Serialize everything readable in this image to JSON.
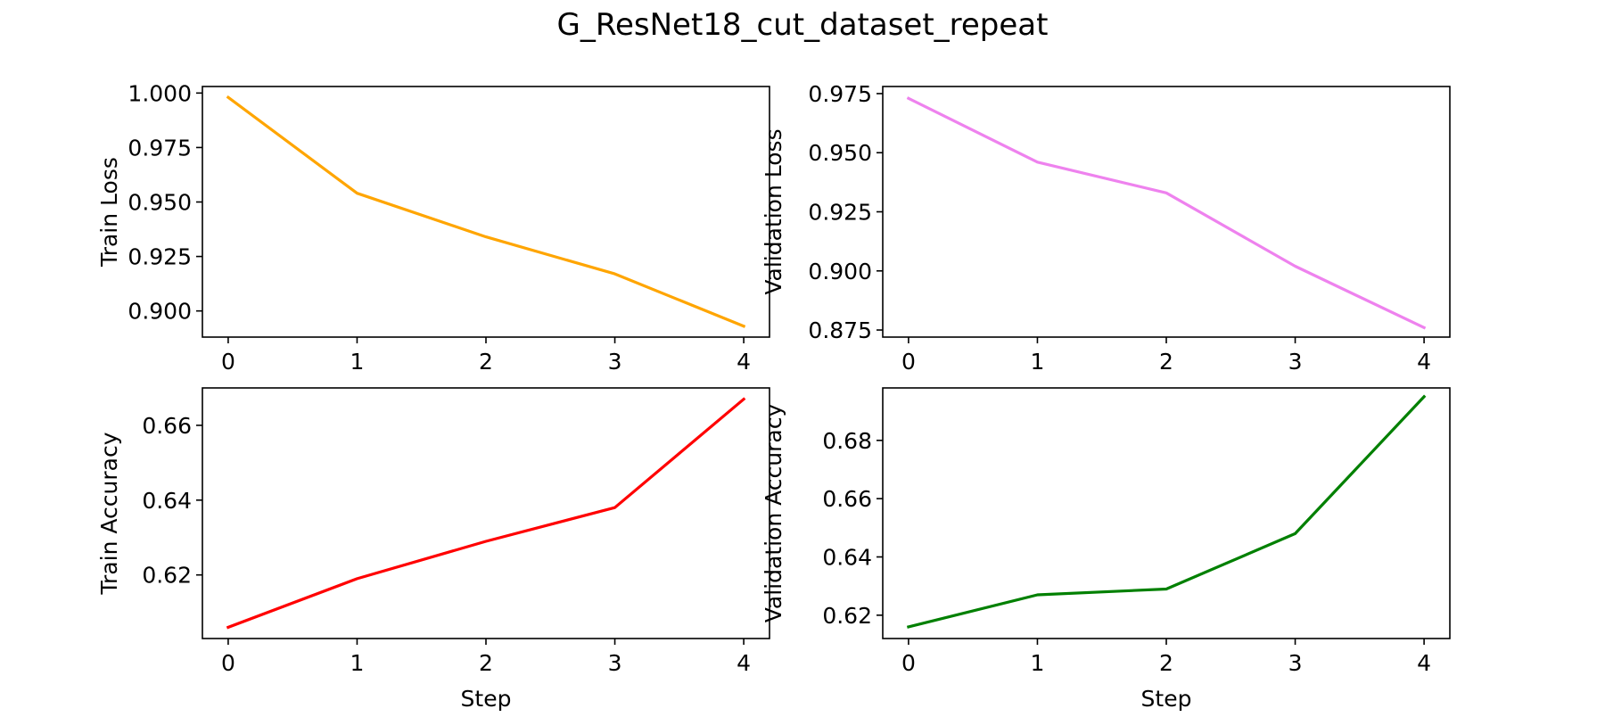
{
  "figure": {
    "title": "G_ResNet18_cut_dataset_repeat"
  },
  "chart_data": [
    {
      "type": "line",
      "id": "train-loss",
      "title": "",
      "xlabel": "",
      "ylabel": "Train Loss",
      "x": [
        0,
        1,
        2,
        3,
        4
      ],
      "series": [
        {
          "values": [
            0.998,
            0.954,
            0.934,
            0.917,
            0.893
          ],
          "color": "#ffa500"
        }
      ],
      "xlim": [
        -0.2,
        4.2
      ],
      "ylim": [
        0.888,
        1.003
      ],
      "xticks": [
        0,
        1,
        2,
        3,
        4
      ],
      "yticks": [
        0.9,
        0.925,
        0.95,
        0.975,
        1.0
      ],
      "ytick_labels": [
        "0.900",
        "0.925",
        "0.950",
        "0.975",
        "1.000"
      ],
      "grid": false
    },
    {
      "type": "line",
      "id": "validation-loss",
      "title": "",
      "xlabel": "",
      "ylabel": "Validation Loss",
      "x": [
        0,
        1,
        2,
        3,
        4
      ],
      "series": [
        {
          "values": [
            0.973,
            0.946,
            0.933,
            0.902,
            0.876
          ],
          "color": "#ee82ee"
        }
      ],
      "xlim": [
        -0.2,
        4.2
      ],
      "ylim": [
        0.872,
        0.978
      ],
      "xticks": [
        0,
        1,
        2,
        3,
        4
      ],
      "yticks": [
        0.875,
        0.9,
        0.925,
        0.95,
        0.975
      ],
      "ytick_labels": [
        "0.875",
        "0.900",
        "0.925",
        "0.950",
        "0.975"
      ],
      "grid": false
    },
    {
      "type": "line",
      "id": "train-accuracy",
      "title": "",
      "xlabel": "Step",
      "ylabel": "Train Accuracy",
      "x": [
        0,
        1,
        2,
        3,
        4
      ],
      "series": [
        {
          "values": [
            0.606,
            0.619,
            0.629,
            0.638,
            0.667
          ],
          "color": "#ff0000"
        }
      ],
      "xlim": [
        -0.2,
        4.2
      ],
      "ylim": [
        0.603,
        0.67
      ],
      "xticks": [
        0,
        1,
        2,
        3,
        4
      ],
      "yticks": [
        0.62,
        0.64,
        0.66
      ],
      "ytick_labels": [
        "0.62",
        "0.64",
        "0.66"
      ],
      "grid": false
    },
    {
      "type": "line",
      "id": "validation-accuracy",
      "title": "",
      "xlabel": "Step",
      "ylabel": "Validation Accuracy",
      "x": [
        0,
        1,
        2,
        3,
        4
      ],
      "series": [
        {
          "values": [
            0.616,
            0.627,
            0.629,
            0.648,
            0.695
          ],
          "color": "#008000"
        }
      ],
      "xlim": [
        -0.2,
        4.2
      ],
      "ylim": [
        0.612,
        0.698
      ],
      "xticks": [
        0,
        1,
        2,
        3,
        4
      ],
      "yticks": [
        0.62,
        0.64,
        0.66,
        0.68
      ],
      "ytick_labels": [
        "0.62",
        "0.64",
        "0.66",
        "0.68"
      ],
      "grid": false
    }
  ]
}
